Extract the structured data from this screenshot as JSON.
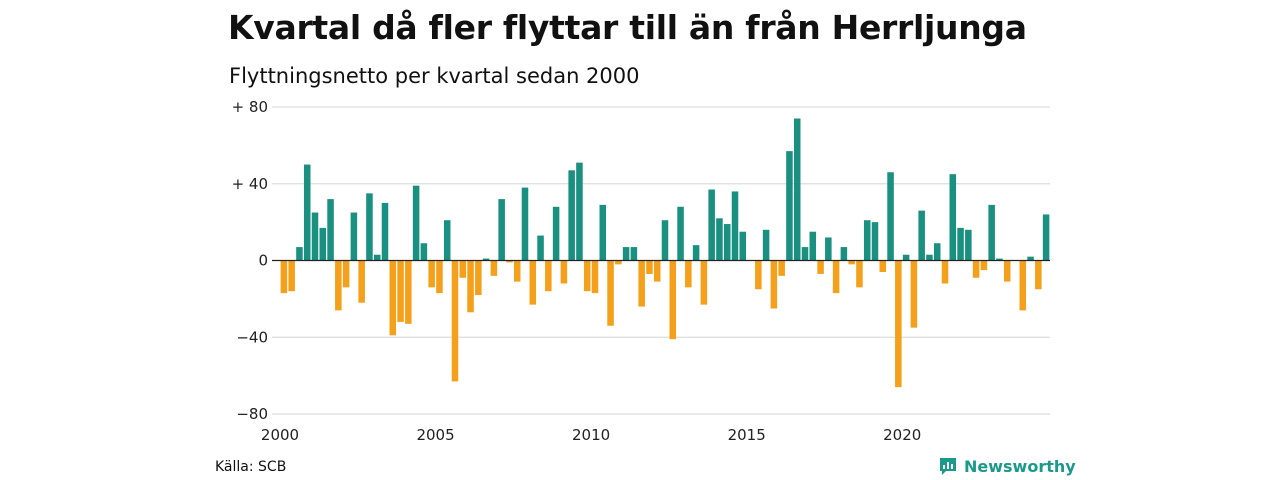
{
  "title": "Kvartal då fler flyttar till än från Herrljunga",
  "subtitle": "Flyttningsnetto per kvartal sedan 2000",
  "source": "Källa: SCB",
  "brand": "Newsworthy",
  "colors": {
    "positive": "#1a9080",
    "negative": "#f5a01a",
    "grid": "#dddddd",
    "axis": "#222222"
  },
  "chart_data": {
    "type": "bar",
    "x_start": 2000,
    "x_step": 0.25,
    "x_ticks": [
      2000,
      2005,
      2010,
      2015,
      2020
    ],
    "x_tick_labels": [
      "2000",
      "2005",
      "2010",
      "2015",
      "2020"
    ],
    "ylim": [
      -80,
      80
    ],
    "y_ticks": [
      80,
      40,
      0,
      -40,
      -80
    ],
    "y_tick_labels": [
      "+ 80",
      "+ 40",
      "0",
      "−40",
      "−80"
    ],
    "grid": true,
    "values": [
      -17,
      -16,
      7,
      50,
      25,
      17,
      32,
      -26,
      -14,
      25,
      -22,
      35,
      3,
      30,
      -39,
      -32,
      -33,
      39,
      9,
      -14,
      -17,
      21,
      -63,
      -9,
      -27,
      -18,
      1,
      -8,
      32,
      -1,
      -11,
      38,
      -23,
      13,
      -16,
      28,
      -12,
      47,
      51,
      -16,
      -17,
      29,
      -34,
      -2,
      7,
      7,
      -24,
      -7,
      -11,
      21,
      -41,
      28,
      -14,
      8,
      -23,
      37,
      22,
      19,
      36,
      15,
      0,
      -15,
      16,
      -25,
      -8,
      57,
      74,
      7,
      15,
      -7,
      12,
      -17,
      7,
      -2,
      -14,
      21,
      20,
      -6,
      46,
      -66,
      3,
      -35,
      26,
      3,
      9,
      -12,
      45,
      17,
      16,
      -9,
      -5,
      29,
      1,
      -11,
      0,
      -26,
      2,
      -15,
      24
    ]
  }
}
